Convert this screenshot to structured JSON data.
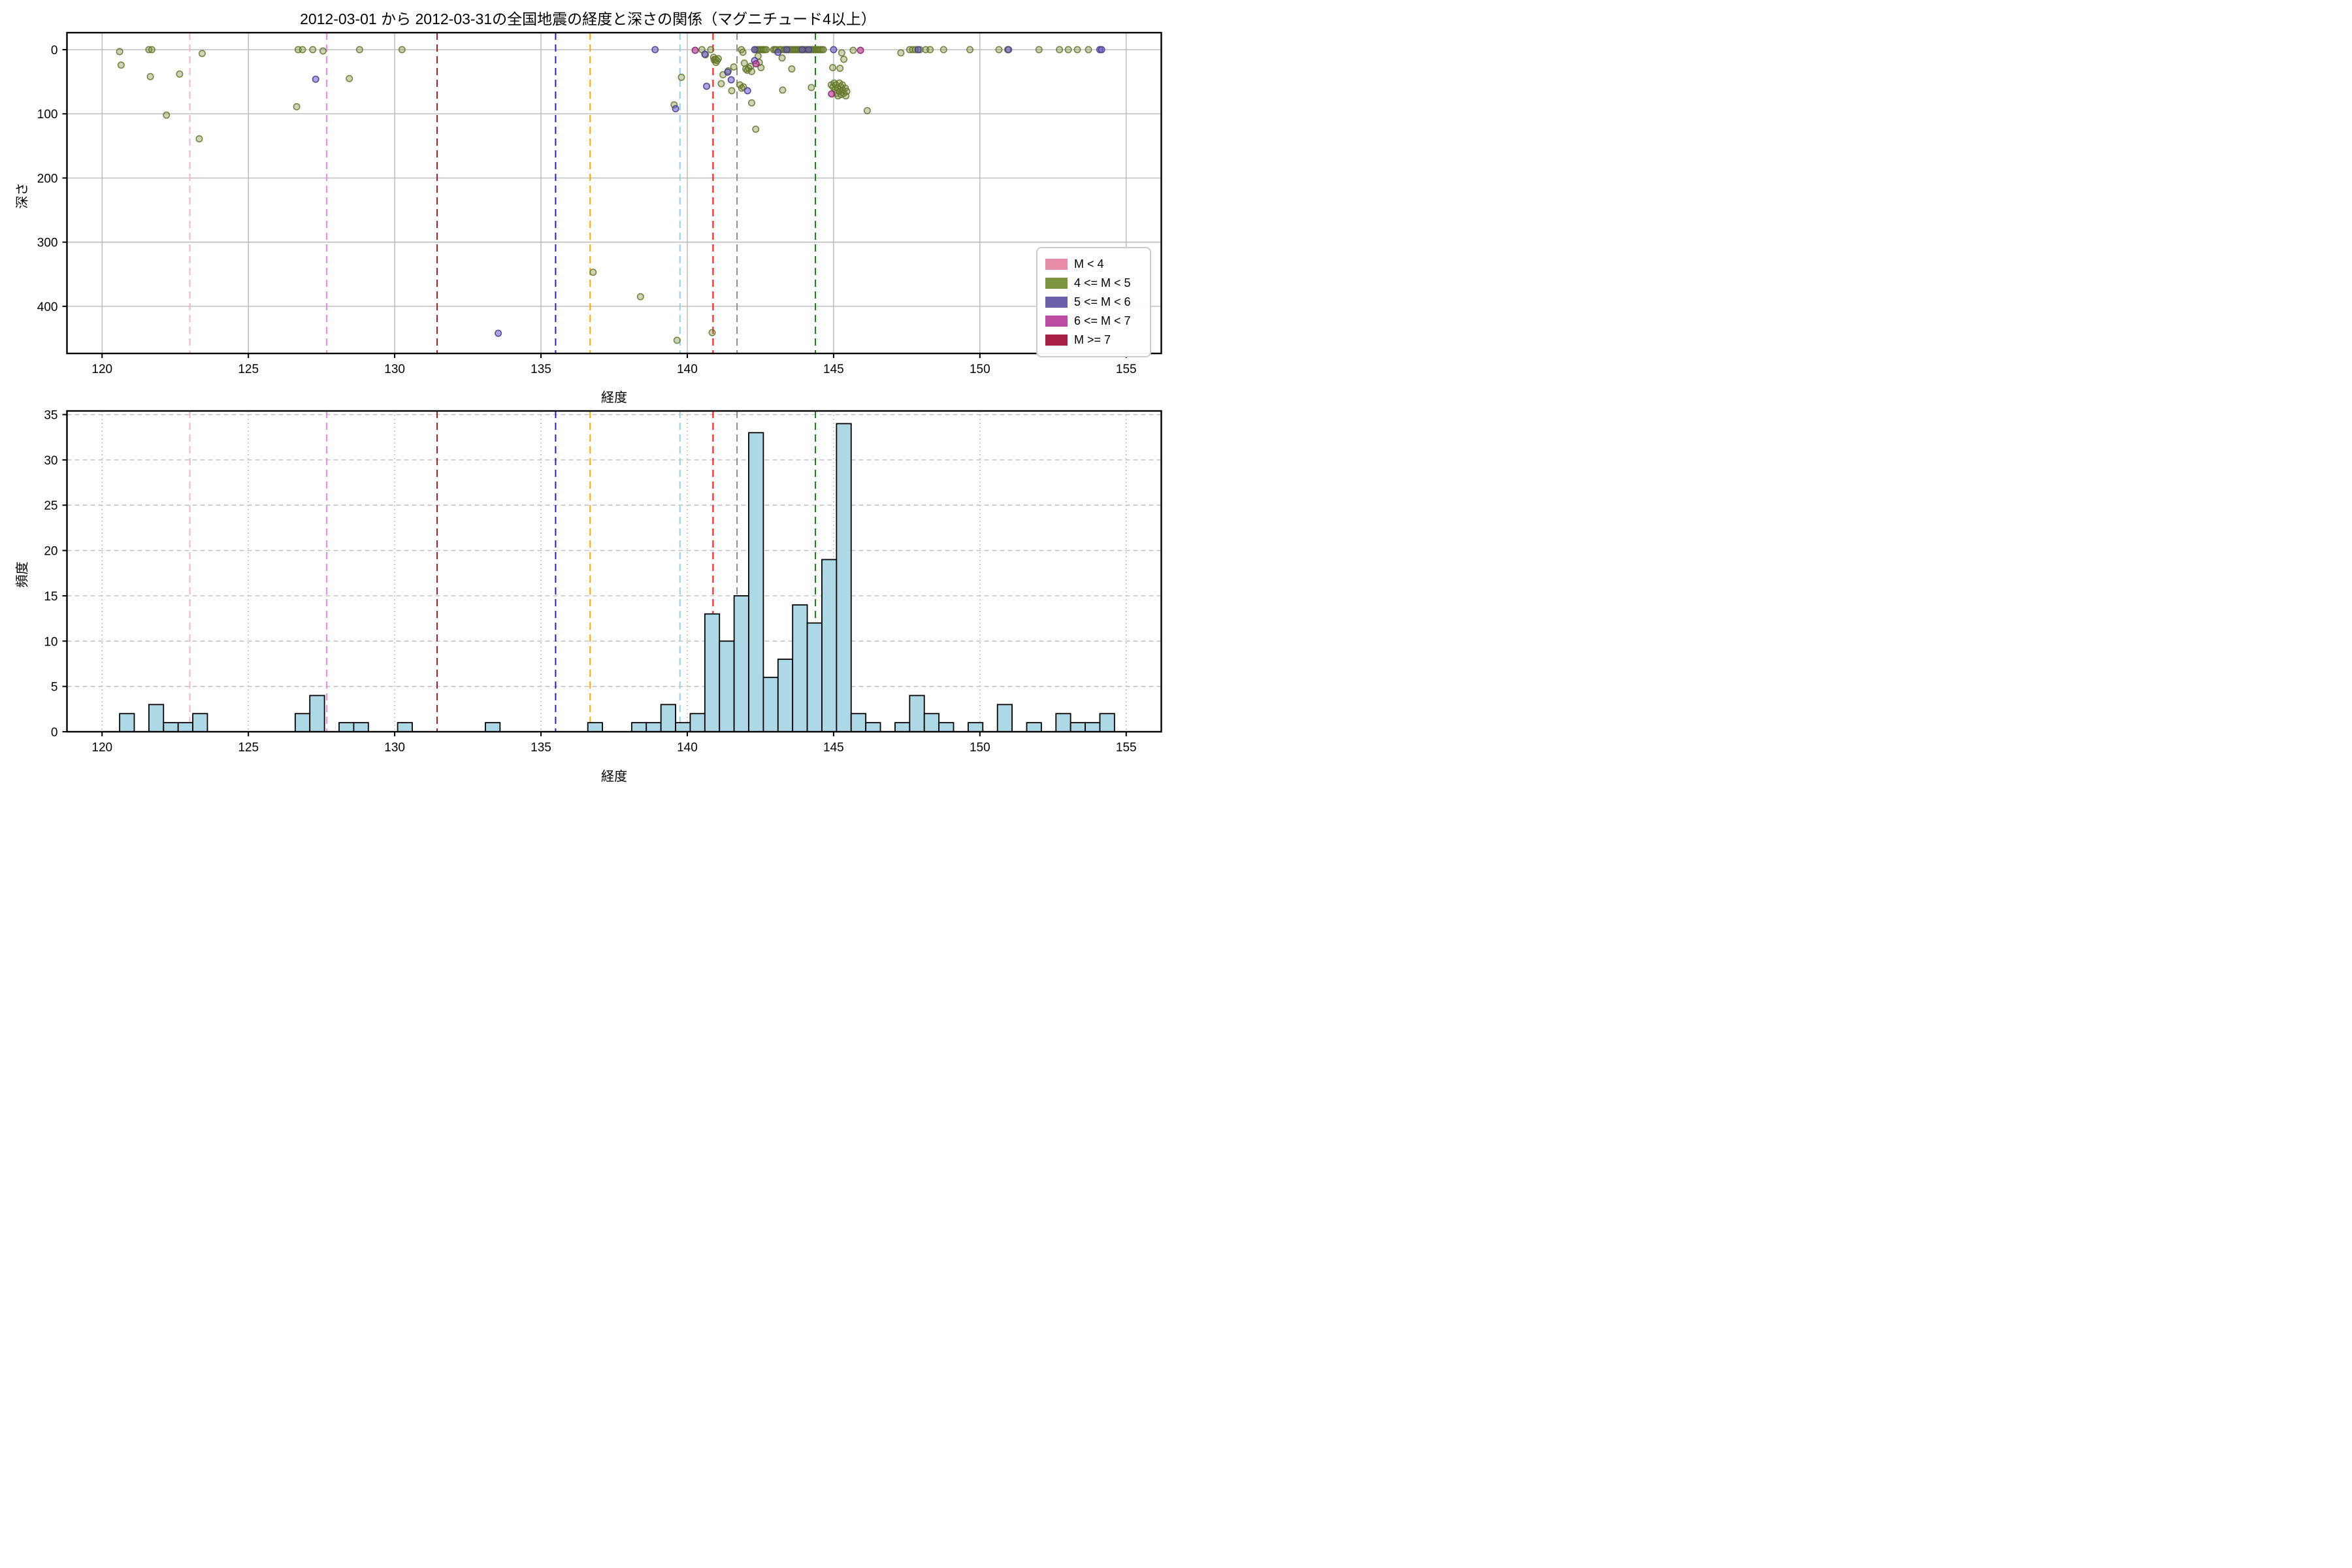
{
  "figure": {
    "title": "2012-03-01 から 2012-03-31の全国地震の経度と深さの関係（マグニチュード4以上）",
    "background": "#ffffff"
  },
  "axes": {
    "top": {
      "xlabel": "経度",
      "ylabel": "深さ",
      "xticks": [
        120,
        125,
        130,
        135,
        140,
        145,
        150,
        155
      ],
      "yticks": [
        0,
        100,
        200,
        300,
        400
      ],
      "xlim": [
        118.8,
        156.2
      ],
      "ylim_depth": [
        -26.5,
        473.5
      ],
      "grid_style": "solid"
    },
    "bottom": {
      "xlabel": "経度",
      "ylabel": "頻度",
      "xticks": [
        120,
        125,
        130,
        135,
        140,
        145,
        150,
        155
      ],
      "yticks": [
        0,
        5,
        10,
        15,
        20,
        25,
        30,
        35
      ],
      "xlim": [
        118.8,
        156.2
      ],
      "ylim": [
        0,
        35.4
      ],
      "grid_style": "dashed"
    }
  },
  "legend": {
    "items": [
      {
        "label": "M < 4",
        "color": "#e88ca8"
      },
      {
        "label": "4 <= M < 5",
        "color": "#7d9440"
      },
      {
        "label": "5 <= M < 6",
        "color": "#6a5fa8"
      },
      {
        "label": "6 <= M < 7",
        "color": "#bc4ba2"
      },
      {
        "label": "M >= 7",
        "color": "#ab2045"
      }
    ]
  },
  "ref_lines": [
    {
      "x": 123.0,
      "color": "#ffb0c8"
    },
    {
      "x": 127.68,
      "color": "#ee82ee"
    },
    {
      "x": 131.45,
      "color": "#9e2121"
    },
    {
      "x": 135.5,
      "color": "#1f1fd6"
    },
    {
      "x": 136.68,
      "color": "#ffa500"
    },
    {
      "x": 139.75,
      "color": "#8ed1ee"
    },
    {
      "x": 140.88,
      "color": "#ff0f0f"
    },
    {
      "x": 141.7,
      "color": "#8c8c8c"
    },
    {
      "x": 144.38,
      "color": "#0f7d0f"
    }
  ],
  "style": {
    "grid_color_top": "#b9b9b9",
    "grid_color_bottom": "#bdbdbd",
    "spine_color": "#000000",
    "bar_fill": "#add8e6",
    "bar_edge": "#000000",
    "classes": {
      "m4": {
        "fill": "rgba(122,145,60,0.38)",
        "stroke": "rgba(95,115,40,0.85)"
      },
      "m5": {
        "fill": "rgba(104,88,198,0.55)",
        "stroke": "rgba(72,61,139,0.9)"
      },
      "m6": {
        "fill": "rgba(192,74,158,0.70)",
        "stroke": "rgba(140,40,120,0.95)"
      }
    }
  },
  "chart_data": [
    {
      "type": "scatter",
      "title": "経度 vs 深さ",
      "xlabel": "経度",
      "ylabel": "深さ",
      "xlim": [
        118.8,
        156.2
      ],
      "ylim": [
        473.5,
        -26.5
      ],
      "legend_position": "lower right",
      "grid": true,
      "series": [
        {
          "name": "4 <= M < 5",
          "class": "m4",
          "points": [
            [
              120.6,
              3
            ],
            [
              120.65,
              24
            ],
            [
              121.6,
              0
            ],
            [
              121.7,
              0
            ],
            [
              121.65,
              42
            ],
            [
              122.2,
              102
            ],
            [
              122.65,
              38
            ],
            [
              123.32,
              139
            ],
            [
              123.42,
              6
            ],
            [
              126.7,
              0
            ],
            [
              126.85,
              0
            ],
            [
              126.65,
              89
            ],
            [
              127.2,
              0
            ],
            [
              127.55,
              2
            ],
            [
              128.45,
              45
            ],
            [
              128.8,
              0
            ],
            [
              130.25,
              0
            ],
            [
              136.78,
              347
            ],
            [
              138.4,
              385
            ],
            [
              139.55,
              86
            ],
            [
              139.8,
              43
            ],
            [
              139.65,
              453
            ],
            [
              140.85,
              441
            ],
            [
              140.5,
              0
            ],
            [
              140.62,
              8
            ],
            [
              140.8,
              0
            ],
            [
              140.9,
              12
            ],
            [
              140.92,
              16
            ],
            [
              140.97,
              15
            ],
            [
              141.02,
              17
            ],
            [
              140.98,
              20
            ],
            [
              141.06,
              14
            ],
            [
              141.16,
              53
            ],
            [
              141.22,
              39
            ],
            [
              141.4,
              33
            ],
            [
              141.52,
              64
            ],
            [
              141.59,
              27
            ],
            [
              141.85,
              0
            ],
            [
              141.9,
              4
            ],
            [
              141.95,
              21
            ],
            [
              142.0,
              30
            ],
            [
              142.05,
              32
            ],
            [
              142.1,
              29
            ],
            [
              142.16,
              26
            ],
            [
              142.2,
              34
            ],
            [
              141.8,
              55
            ],
            [
              141.86,
              60
            ],
            [
              141.92,
              58
            ],
            [
              142.2,
              83
            ],
            [
              142.35,
              0
            ],
            [
              142.4,
              0
            ],
            [
              142.45,
              0
            ],
            [
              142.5,
              0
            ],
            [
              142.55,
              0
            ],
            [
              142.6,
              0
            ],
            [
              142.65,
              0
            ],
            [
              142.7,
              0
            ],
            [
              142.42,
              10
            ],
            [
              142.46,
              20
            ],
            [
              142.52,
              28
            ],
            [
              142.34,
              124
            ],
            [
              142.95,
              0
            ],
            [
              143.0,
              0
            ],
            [
              143.05,
              0
            ],
            [
              143.15,
              0
            ],
            [
              143.2,
              0
            ],
            [
              143.3,
              0
            ],
            [
              143.35,
              0
            ],
            [
              143.45,
              0
            ],
            [
              143.5,
              0
            ],
            [
              143.55,
              0
            ],
            [
              143.6,
              0
            ],
            [
              143.65,
              0
            ],
            [
              143.7,
              0
            ],
            [
              143.75,
              0
            ],
            [
              143.8,
              0
            ],
            [
              143.85,
              0
            ],
            [
              143.9,
              0
            ],
            [
              143.95,
              0
            ],
            [
              144.0,
              0
            ],
            [
              144.05,
              0
            ],
            [
              144.1,
              0
            ],
            [
              144.2,
              0
            ],
            [
              144.25,
              0
            ],
            [
              144.3,
              0
            ],
            [
              144.35,
              0
            ],
            [
              144.4,
              0
            ],
            [
              144.45,
              0
            ],
            [
              144.5,
              0
            ],
            [
              144.55,
              0
            ],
            [
              144.6,
              0
            ],
            [
              144.65,
              0
            ],
            [
              143.24,
              13
            ],
            [
              143.57,
              30
            ],
            [
              143.26,
              63
            ],
            [
              144.24,
              59
            ],
            [
              144.97,
              28
            ],
            [
              145.22,
              29
            ],
            [
              145.28,
              5
            ],
            [
              145.35,
              15
            ],
            [
              145.67,
              1
            ],
            [
              146.15,
              95
            ],
            [
              144.92,
              55
            ],
            [
              144.98,
              58
            ],
            [
              145.02,
              52
            ],
            [
              145.05,
              62
            ],
            [
              145.08,
              55
            ],
            [
              145.1,
              68
            ],
            [
              145.14,
              60
            ],
            [
              145.15,
              72
            ],
            [
              145.2,
              52
            ],
            [
              145.2,
              65
            ],
            [
              145.25,
              58
            ],
            [
              145.26,
              70
            ],
            [
              145.3,
              55
            ],
            [
              145.32,
              63
            ],
            [
              145.35,
              68
            ],
            [
              145.4,
              60
            ],
            [
              145.42,
              72
            ],
            [
              145.45,
              65
            ],
            [
              147.3,
              5
            ],
            [
              147.6,
              0
            ],
            [
              147.7,
              0
            ],
            [
              147.8,
              0
            ],
            [
              147.95,
              0
            ],
            [
              148.15,
              0
            ],
            [
              148.3,
              0
            ],
            [
              148.76,
              0
            ],
            [
              149.66,
              0
            ],
            [
              150.65,
              0
            ],
            [
              150.95,
              0
            ],
            [
              152.02,
              0
            ],
            [
              152.72,
              0
            ],
            [
              153.02,
              0
            ],
            [
              153.33,
              0
            ],
            [
              153.71,
              0
            ]
          ]
        },
        {
          "name": "5 <= M < 6",
          "class": "m5",
          "points": [
            [
              127.3,
              46
            ],
            [
              133.54,
              442
            ],
            [
              138.9,
              0
            ],
            [
              139.6,
              92
            ],
            [
              140.6,
              7
            ],
            [
              140.66,
              57
            ],
            [
              141.38,
              35
            ],
            [
              141.5,
              47
            ],
            [
              142.06,
              64
            ],
            [
              142.3,
              0
            ],
            [
              142.3,
              17
            ],
            [
              143.1,
              4
            ],
            [
              143.4,
              0
            ],
            [
              143.93,
              0
            ],
            [
              144.15,
              0
            ],
            [
              145.0,
              0
            ],
            [
              147.89,
              0
            ],
            [
              150.98,
              0
            ],
            [
              154.1,
              0
            ],
            [
              154.16,
              0
            ]
          ]
        },
        {
          "name": "6 <= M < 7",
          "class": "m6",
          "points": [
            [
              140.27,
              1
            ],
            [
              142.35,
              22
            ],
            [
              144.93,
              69
            ],
            [
              145.92,
              1
            ]
          ]
        },
        {
          "name": "M < 4",
          "class": "m3",
          "points": []
        },
        {
          "name": "M >= 7",
          "class": "m7",
          "points": []
        }
      ]
    },
    {
      "type": "bar",
      "title": "経度の頻度分布",
      "xlabel": "経度",
      "ylabel": "頻度",
      "xlim": [
        118.8,
        156.2
      ],
      "ylim": [
        0,
        35.4
      ],
      "bin_width": 0.5,
      "bins": [
        [
          120.6,
          2
        ],
        [
          121.6,
          3
        ],
        [
          122.1,
          1
        ],
        [
          122.6,
          1
        ],
        [
          123.1,
          2
        ],
        [
          126.6,
          2
        ],
        [
          127.1,
          4
        ],
        [
          128.1,
          1
        ],
        [
          128.6,
          1
        ],
        [
          130.1,
          1
        ],
        [
          133.1,
          1
        ],
        [
          136.6,
          1
        ],
        [
          138.1,
          1
        ],
        [
          138.6,
          1
        ],
        [
          139.1,
          3
        ],
        [
          139.6,
          1
        ],
        [
          140.1,
          2
        ],
        [
          140.6,
          13
        ],
        [
          141.1,
          10
        ],
        [
          141.6,
          15
        ],
        [
          142.1,
          33
        ],
        [
          142.6,
          6
        ],
        [
          143.1,
          8
        ],
        [
          143.6,
          14
        ],
        [
          144.1,
          12
        ],
        [
          144.6,
          19
        ],
        [
          145.1,
          34
        ],
        [
          145.6,
          2
        ],
        [
          146.1,
          1
        ],
        [
          147.1,
          1
        ],
        [
          147.6,
          4
        ],
        [
          148.1,
          2
        ],
        [
          148.6,
          1
        ],
        [
          149.6,
          1
        ],
        [
          150.6,
          3
        ],
        [
          151.6,
          1
        ],
        [
          152.6,
          2
        ],
        [
          153.1,
          1
        ],
        [
          153.6,
          1
        ],
        [
          154.1,
          2
        ]
      ]
    }
  ]
}
